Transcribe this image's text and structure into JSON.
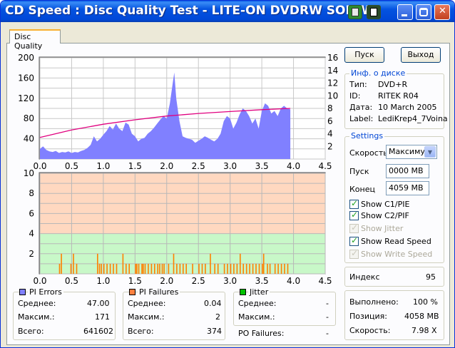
{
  "window": {
    "title": "CD Speed : Disc Quality Test - LITE-ON DVDRW SOHW-"
  },
  "tab": {
    "label": "Disc Quality"
  },
  "buttons": {
    "start": "Пуск",
    "exit": "Выход"
  },
  "disc_info": {
    "title": "Инф. о диске",
    "type_label": "Тип:",
    "type_value": "DVD+R",
    "id_label": "ID:",
    "id_value": "RITEK R04",
    "date_label": "Дата:",
    "date_value": "10 March 2005",
    "label_label": "Label:",
    "label_value": "LediKrep4_7Voina"
  },
  "settings": {
    "title": "Settings",
    "speed_label": "Скорость",
    "speed_value": "Максимум",
    "start_label": "Пуск",
    "start_value": "0000 MB",
    "end_label": "Конец",
    "end_value": "4059 MB",
    "show_c1": "Show C1/PIE",
    "show_c2": "Show C2/PIF",
    "show_jitter": "Show Jitter",
    "show_read_speed": "Show Read Speed",
    "show_write_speed": "Show Write Speed"
  },
  "index": {
    "label": "Индекс",
    "value": "95"
  },
  "progress": {
    "done_label": "Выполнено:",
    "done_value": "100 %",
    "position_label": "Позиция:",
    "position_value": "4058 MB",
    "speed_label": "Скорость:",
    "speed_value": "7.98 X"
  },
  "pi_errors": {
    "title": "PI Errors",
    "color": "#8080ff",
    "avg_label": "Среднее:",
    "avg_value": "47.00",
    "max_label": "Максим.:",
    "max_value": "171",
    "total_label": "Всего:",
    "total_value": "641602"
  },
  "pi_failures": {
    "title": "PI Failures",
    "color": "#ff8040",
    "avg_label": "Среднее:",
    "avg_value": "0.04",
    "max_label": "Максим.:",
    "max_value": "2",
    "total_label": "Всего:",
    "total_value": "374"
  },
  "jitter": {
    "title": "Jitter",
    "color": "#00c000",
    "avg_label": "Среднее:",
    "avg_value": "-",
    "max_label": "Максим.:",
    "max_value": "-",
    "po_label": "PO Failures:",
    "po_value": "-"
  },
  "chart_data": [
    {
      "type": "area",
      "title": "",
      "x_ticks": [
        "0.0",
        "0.5",
        "1.0",
        "1.5",
        "2.0",
        "2.5",
        "3.0",
        "3.5",
        "4.0",
        "4.5"
      ],
      "y_ticks_left": [
        "200",
        "160",
        "120",
        "80",
        "40"
      ],
      "y_ticks_right": [
        "16",
        "14",
        "12",
        "10",
        "8",
        "6",
        "4",
        "2"
      ],
      "xlim": [
        0,
        4.5
      ],
      "ylim_left": [
        0,
        200
      ],
      "ylim_right": [
        0,
        16
      ],
      "pi_errors_color": "#8080ff",
      "read_speed_color": "#e0007f",
      "pi_errors": [
        [
          0.0,
          20
        ],
        [
          0.05,
          25
        ],
        [
          0.1,
          18
        ],
        [
          0.15,
          15
        ],
        [
          0.2,
          14
        ],
        [
          0.25,
          16
        ],
        [
          0.3,
          12
        ],
        [
          0.35,
          14
        ],
        [
          0.4,
          13
        ],
        [
          0.45,
          15
        ],
        [
          0.5,
          12
        ],
        [
          0.55,
          14
        ],
        [
          0.6,
          13
        ],
        [
          0.65,
          16
        ],
        [
          0.7,
          18
        ],
        [
          0.75,
          22
        ],
        [
          0.8,
          28
        ],
        [
          0.85,
          45
        ],
        [
          0.9,
          35
        ],
        [
          0.95,
          40
        ],
        [
          1.0,
          48
        ],
        [
          1.05,
          55
        ],
        [
          1.1,
          65
        ],
        [
          1.15,
          58
        ],
        [
          1.2,
          70
        ],
        [
          1.25,
          60
        ],
        [
          1.3,
          55
        ],
        [
          1.35,
          72
        ],
        [
          1.4,
          68
        ],
        [
          1.45,
          50
        ],
        [
          1.5,
          45
        ],
        [
          1.55,
          35
        ],
        [
          1.6,
          40
        ],
        [
          1.65,
          42
        ],
        [
          1.7,
          50
        ],
        [
          1.75,
          55
        ],
        [
          1.8,
          62
        ],
        [
          1.85,
          70
        ],
        [
          1.9,
          78
        ],
        [
          1.95,
          85
        ],
        [
          2.0,
          80
        ],
        [
          2.05,
          110
        ],
        [
          2.1,
          155
        ],
        [
          2.12,
          171
        ],
        [
          2.15,
          120
        ],
        [
          2.2,
          75
        ],
        [
          2.25,
          45
        ],
        [
          2.3,
          42
        ],
        [
          2.35,
          40
        ],
        [
          2.4,
          38
        ],
        [
          2.45,
          32
        ],
        [
          2.5,
          36
        ],
        [
          2.55,
          40
        ],
        [
          2.6,
          45
        ],
        [
          2.65,
          42
        ],
        [
          2.7,
          38
        ],
        [
          2.75,
          35
        ],
        [
          2.8,
          40
        ],
        [
          2.85,
          50
        ],
        [
          2.9,
          75
        ],
        [
          2.95,
          85
        ],
        [
          3.0,
          80
        ],
        [
          3.05,
          60
        ],
        [
          3.1,
          72
        ],
        [
          3.15,
          88
        ],
        [
          3.2,
          100
        ],
        [
          3.25,
          95
        ],
        [
          3.3,
          85
        ],
        [
          3.35,
          70
        ],
        [
          3.4,
          80
        ],
        [
          3.45,
          60
        ],
        [
          3.5,
          95
        ],
        [
          3.55,
          110
        ],
        [
          3.6,
          105
        ],
        [
          3.65,
          90
        ],
        [
          3.7,
          95
        ],
        [
          3.75,
          85
        ],
        [
          3.8,
          100
        ],
        [
          3.85,
          105
        ],
        [
          3.9,
          100
        ],
        [
          3.95,
          98
        ]
      ],
      "read_speed": [
        [
          0.0,
          3.4
        ],
        [
          0.5,
          4.6
        ],
        [
          1.0,
          5.5
        ],
        [
          1.5,
          6.2
        ],
        [
          2.0,
          6.8
        ],
        [
          2.5,
          7.2
        ],
        [
          3.0,
          7.5
        ],
        [
          3.5,
          7.8
        ],
        [
          3.95,
          8.0
        ]
      ]
    },
    {
      "type": "bar",
      "title": "",
      "x_ticks": [
        "0.0",
        "0.5",
        "1.0",
        "1.5",
        "2.0",
        "2.5",
        "3.0",
        "3.5",
        "4.0",
        "4.5"
      ],
      "y_ticks": [
        "10",
        "8",
        "6",
        "4",
        "2"
      ],
      "xlim": [
        0,
        4.5
      ],
      "ylim": [
        0,
        10
      ],
      "pi_failures_color": "#ff8000",
      "pi_failures": [
        [
          0.3,
          1
        ],
        [
          0.33,
          2
        ],
        [
          0.48,
          1
        ],
        [
          0.52,
          2
        ],
        [
          0.57,
          1
        ],
        [
          0.9,
          2
        ],
        [
          0.93,
          1
        ],
        [
          0.96,
          1
        ],
        [
          1.0,
          1
        ],
        [
          1.05,
          1
        ],
        [
          1.1,
          1
        ],
        [
          1.15,
          1
        ],
        [
          1.2,
          1
        ],
        [
          1.3,
          2
        ],
        [
          1.35,
          1
        ],
        [
          1.4,
          1
        ],
        [
          1.5,
          1
        ],
        [
          1.52,
          1
        ],
        [
          1.55,
          1
        ],
        [
          1.6,
          1
        ],
        [
          1.62,
          1
        ],
        [
          1.65,
          1
        ],
        [
          1.7,
          1
        ],
        [
          1.75,
          1
        ],
        [
          1.8,
          1
        ],
        [
          1.85,
          1
        ],
        [
          1.88,
          1
        ],
        [
          1.92,
          1
        ],
        [
          1.95,
          1
        ],
        [
          2.02,
          1
        ],
        [
          2.1,
          2
        ],
        [
          2.15,
          1
        ],
        [
          2.2,
          1
        ],
        [
          2.25,
          1
        ],
        [
          2.3,
          1
        ],
        [
          2.4,
          1
        ],
        [
          2.5,
          1
        ],
        [
          2.55,
          1
        ],
        [
          2.6,
          1
        ],
        [
          2.68,
          2
        ],
        [
          2.75,
          1
        ],
        [
          2.8,
          1
        ],
        [
          2.9,
          1
        ],
        [
          2.95,
          1
        ],
        [
          3.0,
          1
        ],
        [
          3.05,
          1
        ],
        [
          3.1,
          1
        ],
        [
          3.15,
          2
        ],
        [
          3.2,
          1
        ],
        [
          3.25,
          1
        ],
        [
          3.3,
          1
        ],
        [
          3.35,
          1
        ],
        [
          3.4,
          1
        ],
        [
          3.45,
          1
        ],
        [
          3.5,
          1
        ],
        [
          3.52,
          2
        ],
        [
          3.58,
          1
        ],
        [
          3.62,
          1
        ],
        [
          3.7,
          1
        ],
        [
          3.75,
          1
        ],
        [
          3.8,
          1
        ],
        [
          3.85,
          1
        ],
        [
          3.9,
          1
        ]
      ]
    }
  ]
}
